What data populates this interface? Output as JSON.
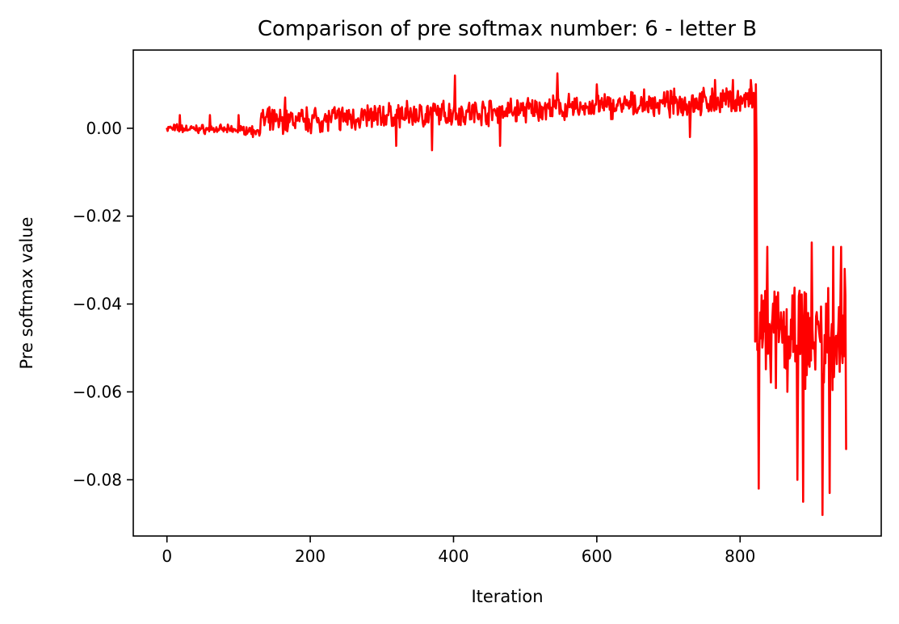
{
  "chart_data": {
    "type": "line",
    "title": "Comparison of pre softmax number: 6 - letter B",
    "xlabel": "Iteration",
    "ylabel": "Pre softmax value",
    "xlim": [
      -47,
      997
    ],
    "ylim": [
      -0.0928,
      0.0178
    ],
    "xticks": [
      0,
      200,
      400,
      600,
      800
    ],
    "xtick_labels": [
      "0",
      "200",
      "400",
      "600",
      "800"
    ],
    "yticks": [
      0.0,
      -0.02,
      -0.04,
      -0.06,
      -0.08
    ],
    "ytick_labels": [
      "0.00",
      "−0.02",
      "−0.04",
      "−0.06",
      "−0.08"
    ],
    "grid": false,
    "legend": "none",
    "series": [
      {
        "color": "#ff0000",
        "segments": [
          {
            "x_start": 0,
            "x_end": 130,
            "center_start": 0.0,
            "center_end": -0.0005,
            "noise": 0.0012,
            "spikes": [
              [
                18,
                0.003
              ],
              [
                60,
                0.003
              ],
              [
                100,
                0.003
              ],
              [
                120,
                -0.002
              ]
            ]
          },
          {
            "x_start": 131,
            "x_end": 820,
            "center_start": 0.0015,
            "center_end": 0.0065,
            "noise": 0.0035,
            "spikes": [
              [
                165,
                0.007
              ],
              [
                320,
                -0.004
              ],
              [
                370,
                -0.005
              ],
              [
                402,
                0.012
              ],
              [
                465,
                -0.004
              ],
              [
                545,
                0.0125
              ],
              [
                600,
                0.01
              ],
              [
                730,
                -0.002
              ],
              [
                765,
                0.011
              ],
              [
                790,
                0.011
              ],
              [
                815,
                0.011
              ]
            ]
          },
          {
            "x_start": 821,
            "x_end": 948,
            "center_start": -0.048,
            "center_end": -0.048,
            "noise": 0.014,
            "spikes": [
              [
                822,
                0.01
              ],
              [
                823,
                -0.005
              ],
              [
                826,
                -0.082
              ],
              [
                830,
                -0.038
              ],
              [
                838,
                -0.027
              ],
              [
                880,
                -0.08
              ],
              [
                888,
                -0.085
              ],
              [
                900,
                -0.026
              ],
              [
                915,
                -0.088
              ],
              [
                925,
                -0.083
              ],
              [
                930,
                -0.027
              ],
              [
                941,
                -0.027
              ],
              [
                946,
                -0.032
              ],
              [
                948,
                -0.073
              ]
            ]
          }
        ]
      }
    ]
  }
}
